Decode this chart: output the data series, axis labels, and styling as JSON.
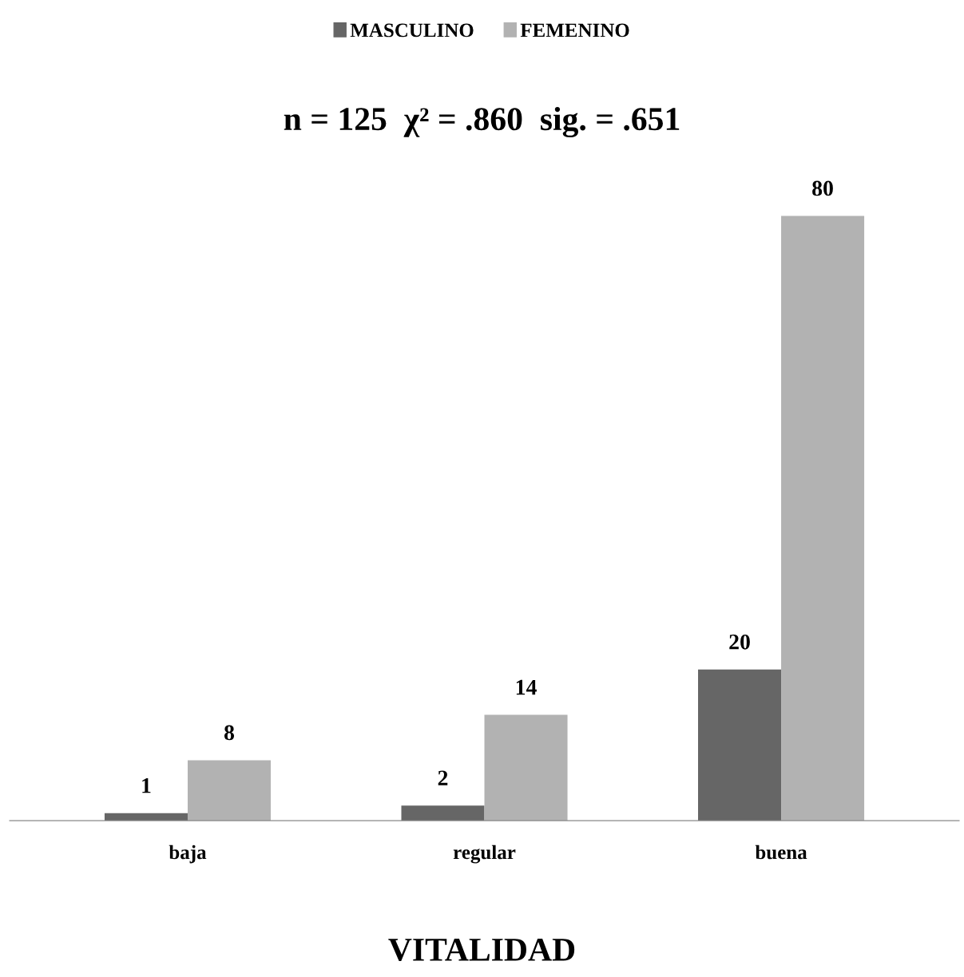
{
  "chart_data": {
    "type": "bar",
    "title": "n = 125  χ² = .860  sig. = .651",
    "xlabel": "VITALIDAD",
    "categories": [
      "baja",
      "regular",
      "buena"
    ],
    "series": [
      {
        "name": "MASCULINO",
        "color": "#666666",
        "values": [
          1,
          2,
          20
        ]
      },
      {
        "name": "FEMENINO",
        "color": "#b2b2b2",
        "values": [
          8,
          14,
          80
        ]
      }
    ],
    "data_labels": true,
    "legend": "top",
    "grid": false
  }
}
